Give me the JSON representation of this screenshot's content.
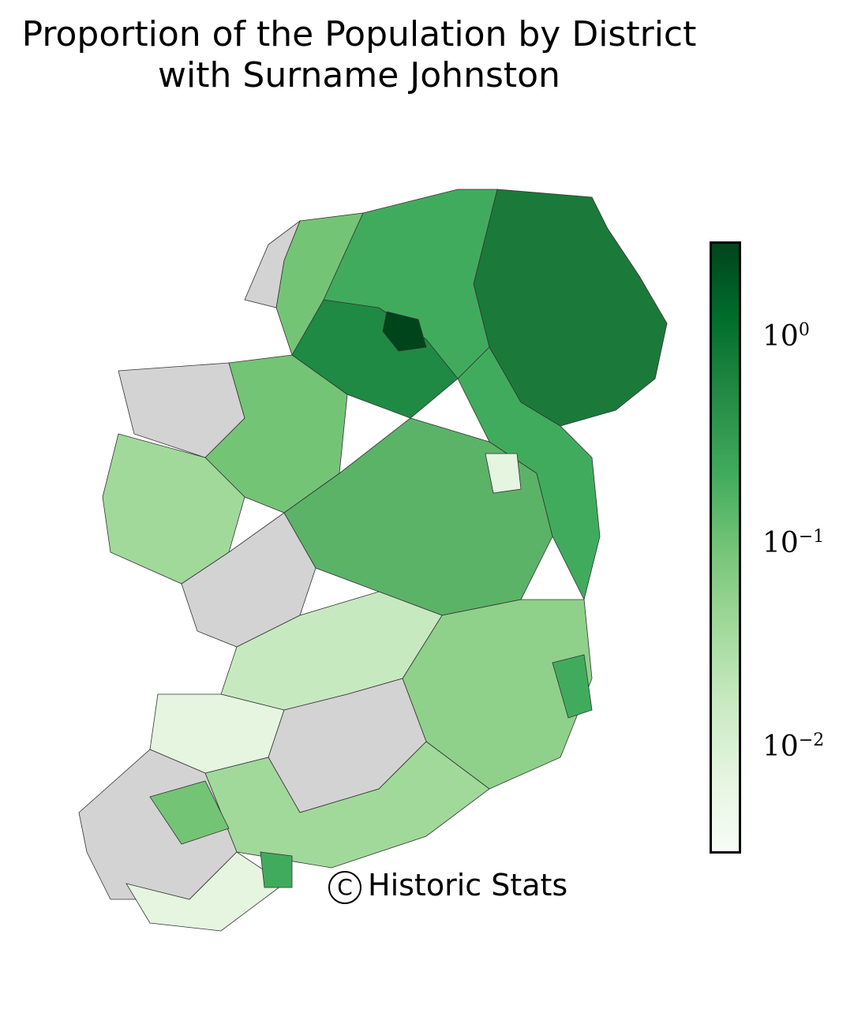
{
  "title_line1": "Proportion of the Population by District",
  "title_line2": "with Surname Johnston",
  "colorbar": {
    "scale": "log",
    "colormap": "Greens",
    "range": [
      0.003,
      3
    ],
    "tick_labels": [
      {
        "base": "10",
        "exp": "0"
      },
      {
        "base": "10",
        "exp": "−1"
      },
      {
        "base": "10",
        "exp": "−2"
      }
    ],
    "no_data_color": "#d3d3d3"
  },
  "copyright": {
    "symbol": "C",
    "text": "Historic Stats"
  },
  "region_colors": {
    "dark": "#005a27",
    "strong": "#1f8a43",
    "medium": "#41ab5d",
    "light": "#74c476",
    "pale": "#a1d99b",
    "faint": "#d9f0d3",
    "none": "#d3d3d3"
  }
}
